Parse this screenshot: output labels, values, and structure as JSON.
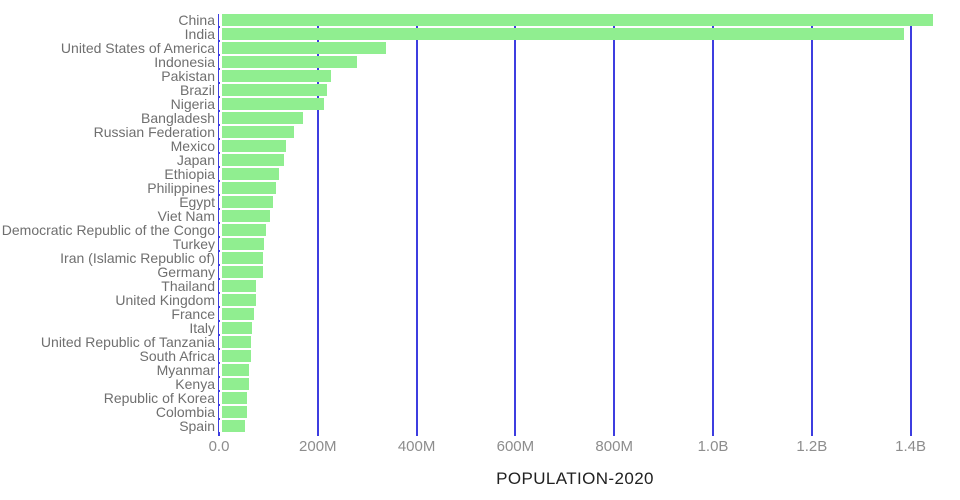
{
  "chart_data": {
    "type": "bar",
    "orientation": "horizontal",
    "title": "POPULATION-2020",
    "value_unit": "millions of people",
    "categories": [
      "China",
      "India",
      "United States of America",
      "Indonesia",
      "Pakistan",
      "Brazil",
      "Nigeria",
      "Bangladesh",
      "Russian Federation",
      "Mexico",
      "Japan",
      "Ethiopia",
      "Philippines",
      "Egypt",
      "Viet Nam",
      "Democratic Republic of the Congo",
      "Turkey",
      "Iran (Islamic Republic of)",
      "Germany",
      "Thailand",
      "United Kingdom",
      "France",
      "Italy",
      "United Republic of Tanzania",
      "South Africa",
      "Myanmar",
      "Kenya",
      "Republic of Korea",
      "Colombia",
      "Spain"
    ],
    "values": [
      1439.3,
      1380.0,
      331.0,
      273.5,
      220.9,
      212.6,
      206.1,
      164.7,
      145.9,
      128.9,
      126.5,
      115.0,
      109.6,
      102.3,
      97.3,
      89.6,
      84.3,
      84.0,
      83.8,
      69.8,
      67.9,
      65.3,
      60.5,
      59.7,
      59.3,
      54.4,
      53.8,
      51.3,
      50.9,
      46.8
    ],
    "xlim": [
      0,
      1500
    ],
    "x_tick_values": [
      0,
      200,
      400,
      600,
      800,
      1000,
      1200,
      1400
    ],
    "x_tick_labels": [
      "0.0",
      "200M",
      "400M",
      "600M",
      "800M",
      "1.0B",
      "1.2B",
      "1.4B"
    ],
    "grid": true,
    "legend": "none",
    "colors": {
      "bar": "#90ee90",
      "gridline": "#3d3de0",
      "category_label": "#6f6f6f",
      "tick_label": "#8d8d8d",
      "title": "#212121",
      "background": "#ffffff"
    }
  }
}
